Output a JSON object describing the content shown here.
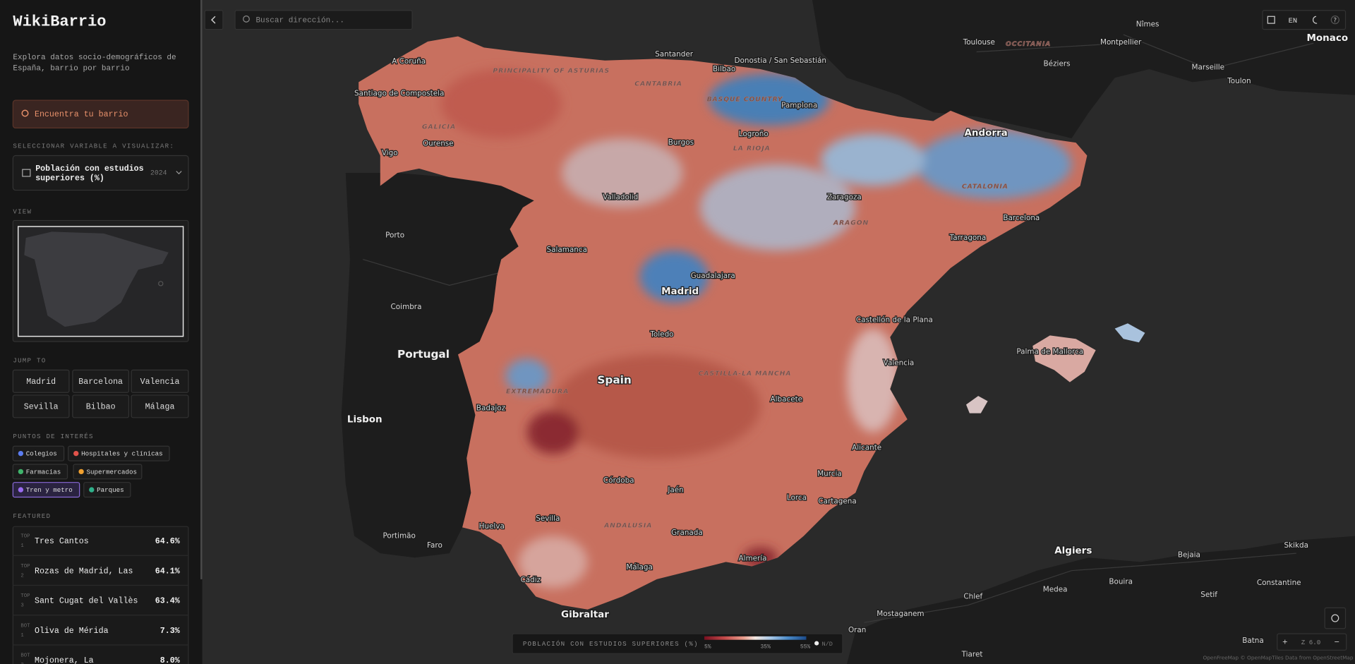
{
  "sidebar": {
    "title": "WikiBarrio",
    "subtitle": [
      "Explora datos socio-demográficos de",
      "España, barrio por barrio"
    ],
    "find_button": "Encuentra tu barrio",
    "variable_heading": "SELECCIONAR VARIABLE A VISUALIZAR:",
    "variable": {
      "name": [
        "Población con estudios",
        "superiores (%)"
      ],
      "year": "2024"
    },
    "view_heading": "VIEW",
    "jump_heading": "JUMP TO",
    "jump_to": [
      "Madrid",
      "Barcelona",
      "Valencia",
      "Sevilla",
      "Bilbao",
      "Málaga"
    ],
    "poi_heading": "PUNTOS DE INTERÉS",
    "poi": [
      {
        "name": "Colegios",
        "color": "#5b7cf0",
        "active": false
      },
      {
        "name": "Hospitales y clínicas",
        "color": "#e2534b",
        "active": false
      },
      {
        "name": "Farmacias",
        "color": "#3fb36b",
        "active": false
      },
      {
        "name": "Supermercados",
        "color": "#f0a030",
        "active": false
      },
      {
        "name": "Tren y metro",
        "color": "#9a6cf0",
        "active": true
      },
      {
        "name": "Parques",
        "color": "#2fb08a",
        "active": false
      }
    ],
    "featured_heading": "FEATURED",
    "featured": [
      {
        "group": "TOP",
        "rank": "1",
        "name": "Tres Cantos",
        "value": "64.6%"
      },
      {
        "group": "TOP",
        "rank": "2",
        "name": "Rozas de Madrid, Las",
        "value": "64.1%"
      },
      {
        "group": "TOP",
        "rank": "3",
        "name": "Sant Cugat del Vallès",
        "value": "63.4%"
      },
      {
        "group": "BOT",
        "rank": "1",
        "name": "Oliva de Mérida",
        "value": "7.3%"
      },
      {
        "group": "BOT",
        "rank": "2",
        "name": "Mojonera, La",
        "value": "8.0%"
      }
    ]
  },
  "search_placeholder": "Buscar dirección...",
  "language": "EN",
  "map": {
    "country_labels": [
      "Portugal",
      "Spain"
    ],
    "region_labels": [
      "PRINCIPALITY OF ASTURIAS",
      "CANTABRIA",
      "BASQUE COUNTRY",
      "GALICIA",
      "LA RIOJA",
      "CATALONIA",
      "ARAGON",
      "EXTREMADURA",
      "CASTILLA-LA MANCHA",
      "ANDALUSIA",
      "OCCITANIA"
    ],
    "city_labels": [
      "A Coruña",
      "Santiago de Compostela",
      "Santander",
      "Bilbao",
      "Donostia / San Sebastián",
      "Pamplona",
      "Logroño",
      "Burgos",
      "Ourense",
      "Vigo",
      "Valladolid",
      "Zaragoza",
      "Andorra",
      "Barcelona",
      "Tarragona",
      "Salamanca",
      "Guadalajara",
      "Madrid",
      "Toledo",
      "Castellón de la Plana",
      "Valencia",
      "Palma de Mallorca",
      "Badajoz",
      "Albacete",
      "Alicante",
      "Murcia",
      "Lorca",
      "Cartagena",
      "Córdoba",
      "Jaén",
      "Sevilla",
      "Huelva",
      "Granada",
      "Almería",
      "Málaga",
      "Cádiz",
      "Gibraltar",
      "Porto",
      "Coimbra",
      "Lisbon",
      "Faro",
      "Portimão",
      "Toulouse",
      "Montpellier",
      "Nîmes",
      "Marseille",
      "Béziers",
      "Toulon",
      "Monaco",
      "Algiers",
      "Bejaia",
      "Skikda",
      "Constantine",
      "Medea",
      "Bouira",
      "Setif",
      "Chlef",
      "Mostaganem",
      "Oran",
      "Batna",
      "Tiaret"
    ]
  },
  "legend": {
    "title": "POBLACIÓN CON ESTUDIOS SUPERIORES (%)",
    "ticks": [
      "5%",
      "35%",
      "55%"
    ],
    "no_data": "N/D"
  },
  "zoom": {
    "zoom_in": "+",
    "level": "Z 6.0",
    "zoom_out": "−"
  },
  "attribution": "OpenFreeMap © OpenMapTiles Data from OpenStreetMap"
}
